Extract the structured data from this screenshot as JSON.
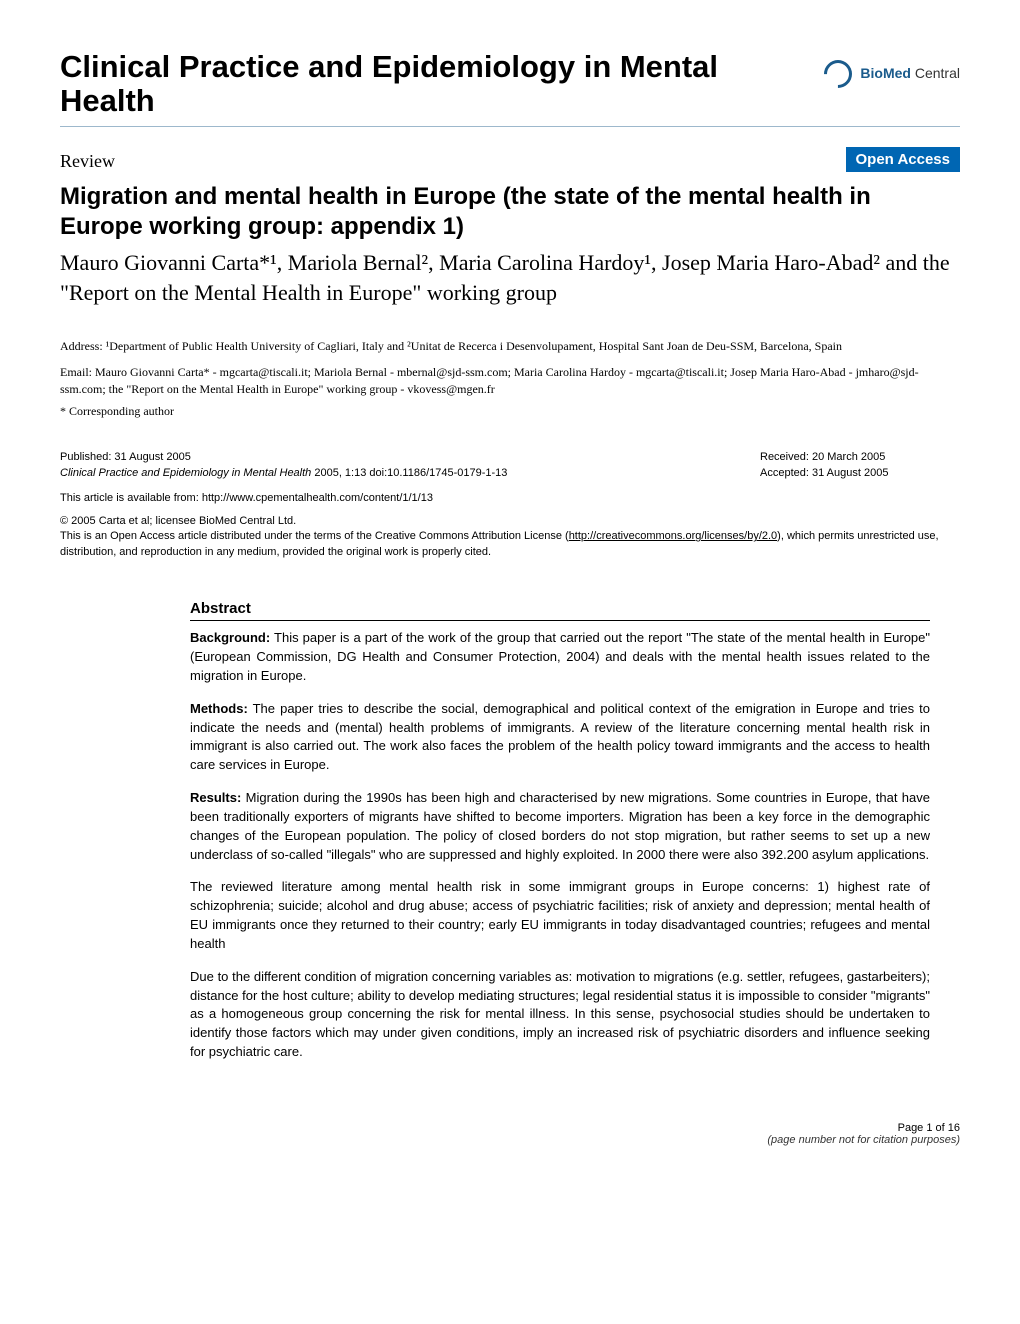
{
  "journal": {
    "title": "Clinical Practice and Epidemiology in Mental Health",
    "logo_prefix": "BioMed",
    "logo_suffix": " Central"
  },
  "badges": {
    "review": "Review",
    "open_access": "Open Access"
  },
  "article": {
    "title": "Migration and mental health in Europe (the state of the mental health in Europe working group: appendix 1)",
    "authors_html": "Mauro Giovanni Carta*¹, Mariola Bernal², Maria Carolina Hardoy¹, Josep Maria Haro-Abad² and the \"Report on the Mental Health in Europe\" working group"
  },
  "affiliations": "Address: ¹Department of Public Health University of Cagliari, Italy and ²Unitat de Recerca i Desenvolupament, Hospital Sant Joan de Deu-SSM, Barcelona, Spain",
  "emails": "Email: Mauro Giovanni Carta* - mgcarta@tiscali.it; Mariola Bernal - mbernal@sjd-ssm.com; Maria Carolina Hardoy - mgcarta@tiscali.it; Josep Maria Haro-Abad - jmharo@sjd-ssm.com; the \"Report on the Mental Health in Europe\" working group - vkovess@mgen.fr",
  "corresponding": "* Corresponding author",
  "publication": {
    "published": "Published: 31 August 2005",
    "citation_journal": "Clinical Practice and Epidemiology in Mental Health",
    "citation_rest": " 2005, 1:13    doi:10.1186/1745-0179-1-13",
    "received": "Received: 20 March 2005",
    "accepted": "Accepted: 31 August 2005",
    "available_from": "This article is available from: http://www.cpementalhealth.com/content/1/1/13"
  },
  "copyright": {
    "line1": "© 2005 Carta et al; licensee BioMed Central Ltd.",
    "line2_pre": "This is an Open Access article distributed under the terms of the Creative Commons Attribution License (",
    "line2_link": "http://creativecommons.org/licenses/by/2.0",
    "line2_post": "), which permits unrestricted use, distribution, and reproduction in any medium, provided the original work is properly cited."
  },
  "abstract": {
    "heading": "Abstract",
    "paragraphs": [
      {
        "label": "Background:",
        "text": " This paper is a part of the work of the group that carried out the report \"The state of the mental health in Europe\" (European Commission, DG Health and Consumer Protection, 2004) and deals with the mental health issues related to the migration in Europe."
      },
      {
        "label": "Methods:",
        "text": " The paper tries to describe the social, demographical and political context of the emigration in Europe and tries to indicate the needs and (mental) health problems of immigrants. A review of the literature concerning mental health risk in immigrant is also carried out. The work also faces the problem of the health policy toward immigrants and the access to health care services in Europe."
      },
      {
        "label": "Results:",
        "text": " Migration during the 1990s has been high and characterised by new migrations. Some countries in Europe, that have been traditionally exporters of migrants have shifted to become importers. Migration has been a key force in the demographic changes of the European population. The policy of closed borders do not stop migration, but rather seems to set up a new underclass of so-called \"illegals\" who are suppressed and highly exploited. In 2000 there were also 392.200 asylum applications."
      },
      {
        "label": "",
        "text": "The reviewed literature among mental health risk in some immigrant groups in Europe concerns: 1) highest rate of schizophrenia; suicide; alcohol and drug abuse; access of psychiatric facilities; risk of anxiety and depression; mental health of EU immigrants once they returned to their country; early EU immigrants in today disadvantaged countries; refugees and mental health"
      },
      {
        "label": "",
        "text": "Due to the different condition of migration concerning variables as: motivation to migrations (e.g. settler, refugees, gastarbeiters); distance for the host culture; ability to develop mediating structures; legal residential status it is impossible to consider \"migrants\" as a homogeneous group concerning the risk for mental illness. In this sense, psychosocial studies should be undertaken to identify those factors which may under given conditions, imply an increased risk of psychiatric disorders and influence seeking for psychiatric care."
      }
    ]
  },
  "footer": {
    "page": "Page 1 of 16",
    "note": "(page number not for citation purposes)"
  },
  "colors": {
    "open_access_bg": "#0066b3",
    "divider": "#9db8cc",
    "logo": "#1a5b8c"
  }
}
